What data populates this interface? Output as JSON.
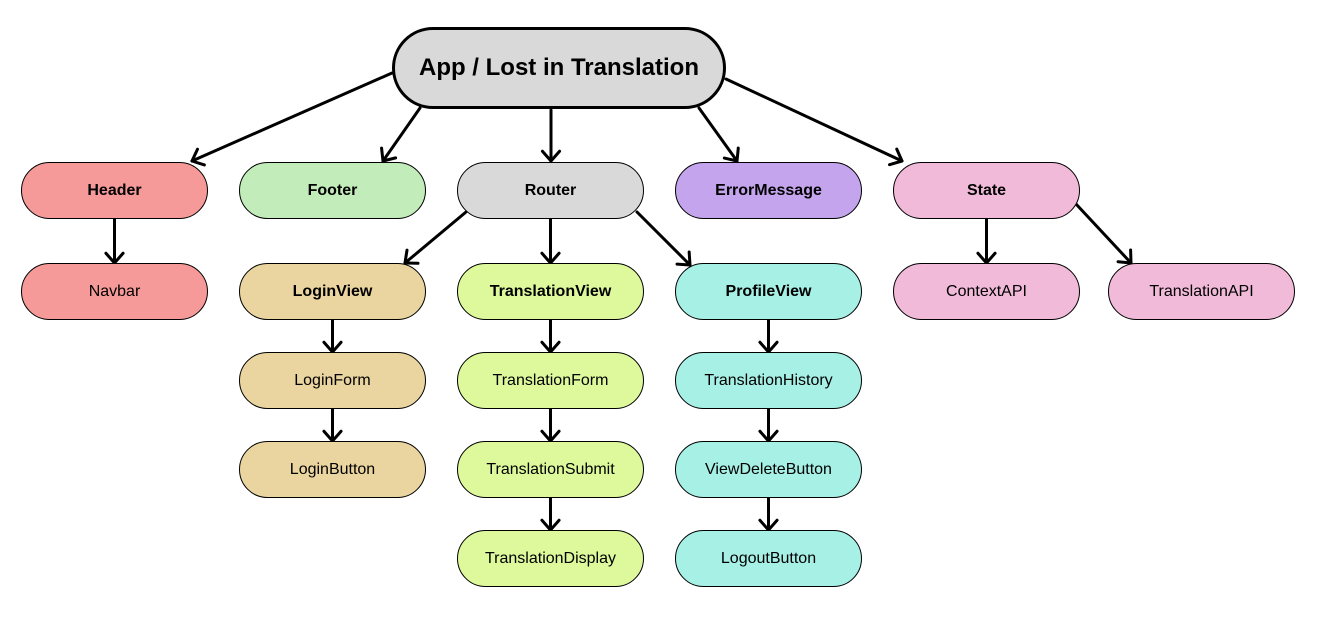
{
  "colors": {
    "gray": "#d9d9d9",
    "red": "#f59a98",
    "green": "#c2ecb9",
    "purple": "#c4a4ec",
    "pink": "#f1bad9",
    "tan": "#ead49f",
    "lime": "#ddf99c",
    "cyan": "#a6f0e6"
  },
  "nodes": {
    "app": {
      "label": "App / Lost in Translation",
      "color": "gray"
    },
    "header": {
      "label": "Header",
      "color": "red"
    },
    "navbar": {
      "label": "Navbar",
      "color": "red"
    },
    "footer": {
      "label": "Footer",
      "color": "green"
    },
    "router": {
      "label": "Router",
      "color": "gray"
    },
    "errormessage": {
      "label": "ErrorMessage",
      "color": "purple"
    },
    "state": {
      "label": "State",
      "color": "pink"
    },
    "contextapi": {
      "label": "ContextAPI",
      "color": "pink"
    },
    "translationapi": {
      "label": "TranslationAPI",
      "color": "pink"
    },
    "loginview": {
      "label": "LoginView",
      "color": "tan"
    },
    "loginform": {
      "label": "LoginForm",
      "color": "tan"
    },
    "loginbutton": {
      "label": "LoginButton",
      "color": "tan"
    },
    "translationview": {
      "label": "TranslationView",
      "color": "lime"
    },
    "translationform": {
      "label": "TranslationForm",
      "color": "lime"
    },
    "translationsubmit": {
      "label": "TranslationSubmit",
      "color": "lime"
    },
    "translationdisplay": {
      "label": "TranslationDisplay",
      "color": "lime"
    },
    "profileview": {
      "label": "ProfileView",
      "color": "cyan"
    },
    "translationhistory": {
      "label": "TranslationHistory",
      "color": "cyan"
    },
    "viewdeletebutton": {
      "label": "ViewDeleteButton",
      "color": "cyan"
    },
    "logoutbutton": {
      "label": "LogoutButton",
      "color": "cyan"
    }
  },
  "edges": [
    [
      "app",
      "header"
    ],
    [
      "app",
      "footer"
    ],
    [
      "app",
      "router"
    ],
    [
      "app",
      "errormessage"
    ],
    [
      "app",
      "state"
    ],
    [
      "header",
      "navbar"
    ],
    [
      "router",
      "loginview"
    ],
    [
      "router",
      "translationview"
    ],
    [
      "router",
      "profileview"
    ],
    [
      "loginview",
      "loginform"
    ],
    [
      "loginform",
      "loginbutton"
    ],
    [
      "translationview",
      "translationform"
    ],
    [
      "translationform",
      "translationsubmit"
    ],
    [
      "translationsubmit",
      "translationdisplay"
    ],
    [
      "profileview",
      "translationhistory"
    ],
    [
      "translationhistory",
      "viewdeletebutton"
    ],
    [
      "viewdeletebutton",
      "logoutbutton"
    ],
    [
      "state",
      "contextapi"
    ],
    [
      "state",
      "translationapi"
    ]
  ]
}
